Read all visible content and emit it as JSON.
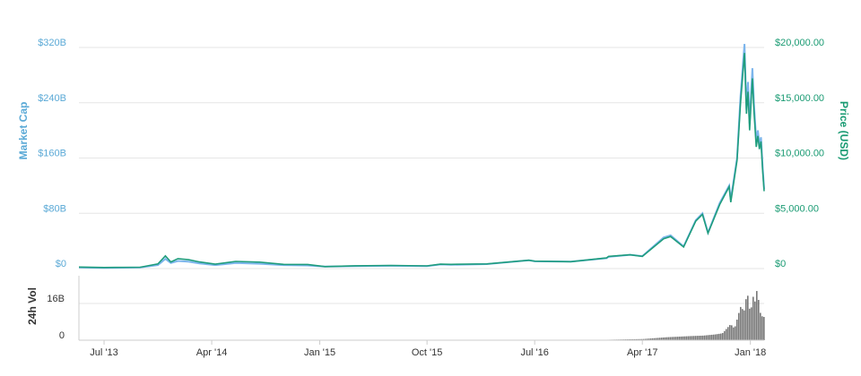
{
  "chart_data": {
    "type": "line",
    "left_axis_title": "Market Cap",
    "right_axis_title": "Price (USD)",
    "volume_axis_title": "24h Vol",
    "left_ticks": [
      {
        "value": 0,
        "label": "$0"
      },
      {
        "value": 80,
        "label": "$80B"
      },
      {
        "value": 160,
        "label": "$160B"
      },
      {
        "value": 240,
        "label": "$240B"
      },
      {
        "value": 320,
        "label": "$320B"
      }
    ],
    "right_ticks": [
      {
        "value": 0,
        "label": "$0"
      },
      {
        "value": 5000,
        "label": "$5,000.00"
      },
      {
        "value": 10000,
        "label": "$10,000.00"
      },
      {
        "value": 15000,
        "label": "$15,000.00"
      },
      {
        "value": 20000,
        "label": "$20,000.00"
      }
    ],
    "volume_ticks": [
      {
        "value": 0,
        "label": "0"
      },
      {
        "value": 16,
        "label": "16B"
      }
    ],
    "x_ticks": [
      {
        "date": "2013-07-01",
        "label": "Jul '13"
      },
      {
        "date": "2014-04-01",
        "label": "Apr '14"
      },
      {
        "date": "2015-01-01",
        "label": "Jan '15"
      },
      {
        "date": "2015-10-01",
        "label": "Oct '15"
      },
      {
        "date": "2016-07-01",
        "label": "Jul '16"
      },
      {
        "date": "2017-04-01",
        "label": "Apr '17"
      },
      {
        "date": "2018-01-01",
        "label": "Jan '18"
      }
    ],
    "x_range": [
      "2013-04-28",
      "2018-02-05"
    ],
    "left_range": [
      0,
      320
    ],
    "right_range": [
      0,
      20000
    ],
    "volume_range": [
      0,
      25
    ],
    "grid": true,
    "colors": {
      "market_cap": "#7cb5ec",
      "price": "#1f9d7d",
      "volume": "#777777",
      "left_axis": "#5aa9d6",
      "right_axis": "#1a9b73",
      "axis_text": "#333333",
      "grid": "#e6e6e6"
    },
    "series": [
      {
        "key": "market_cap",
        "unit": "B USD",
        "points": [
          [
            "2013-04-28",
            1.5
          ],
          [
            "2013-07-01",
            1.1
          ],
          [
            "2013-10-01",
            1.6
          ],
          [
            "2013-11-15",
            5.0
          ],
          [
            "2013-12-04",
            14.0
          ],
          [
            "2013-12-18",
            8.0
          ],
          [
            "2014-01-05",
            11.0
          ],
          [
            "2014-02-01",
            10.0
          ],
          [
            "2014-03-01",
            7.5
          ],
          [
            "2014-04-10",
            5.0
          ],
          [
            "2014-06-01",
            8.0
          ],
          [
            "2014-08-01",
            7.0
          ],
          [
            "2014-10-01",
            5.0
          ],
          [
            "2014-12-01",
            4.5
          ],
          [
            "2015-01-14",
            2.8
          ],
          [
            "2015-04-01",
            3.5
          ],
          [
            "2015-07-01",
            4.0
          ],
          [
            "2015-10-01",
            3.5
          ],
          [
            "2015-11-04",
            6.0
          ],
          [
            "2015-12-01",
            5.5
          ],
          [
            "2016-03-01",
            6.5
          ],
          [
            "2016-06-16",
            12.0
          ],
          [
            "2016-07-01",
            10.5
          ],
          [
            "2016-10-01",
            10.0
          ],
          [
            "2016-12-31",
            15.0
          ],
          [
            "2017-01-05",
            17.0
          ],
          [
            "2017-03-01",
            20.0
          ],
          [
            "2017-04-01",
            18.0
          ],
          [
            "2017-05-25",
            45.0
          ],
          [
            "2017-06-12",
            48.0
          ],
          [
            "2017-07-15",
            32.0
          ],
          [
            "2017-08-15",
            70.0
          ],
          [
            "2017-09-01",
            80.0
          ],
          [
            "2017-09-15",
            52.0
          ],
          [
            "2017-10-15",
            95.0
          ],
          [
            "2017-11-08",
            120.0
          ],
          [
            "2017-11-12",
            100.0
          ],
          [
            "2017-11-28",
            160.0
          ],
          [
            "2017-12-07",
            250.0
          ],
          [
            "2017-12-17",
            325.0
          ],
          [
            "2017-12-22",
            230.0
          ],
          [
            "2017-12-26",
            270.0
          ],
          [
            "2017-12-30",
            210.0
          ],
          [
            "2018-01-06",
            290.0
          ],
          [
            "2018-01-10",
            240.0
          ],
          [
            "2018-01-16",
            185.0
          ],
          [
            "2018-01-20",
            200.0
          ],
          [
            "2018-01-24",
            180.0
          ],
          [
            "2018-01-28",
            190.0
          ],
          [
            "2018-02-01",
            150.0
          ],
          [
            "2018-02-05",
            115.0
          ]
        ]
      },
      {
        "key": "price",
        "unit": "USD",
        "points": [
          [
            "2013-04-28",
            135
          ],
          [
            "2013-07-01",
            95
          ],
          [
            "2013-10-01",
            125
          ],
          [
            "2013-11-15",
            420
          ],
          [
            "2013-12-04",
            1150
          ],
          [
            "2013-12-18",
            600
          ],
          [
            "2014-01-05",
            900
          ],
          [
            "2014-02-01",
            800
          ],
          [
            "2014-03-01",
            600
          ],
          [
            "2014-04-10",
            400
          ],
          [
            "2014-06-01",
            650
          ],
          [
            "2014-08-01",
            580
          ],
          [
            "2014-10-01",
            380
          ],
          [
            "2014-12-01",
            370
          ],
          [
            "2015-01-14",
            180
          ],
          [
            "2015-04-01",
            250
          ],
          [
            "2015-07-01",
            280
          ],
          [
            "2015-10-01",
            240
          ],
          [
            "2015-11-04",
            400
          ],
          [
            "2015-12-01",
            380
          ],
          [
            "2016-03-01",
            420
          ],
          [
            "2016-06-16",
            750
          ],
          [
            "2016-07-01",
            670
          ],
          [
            "2016-10-01",
            620
          ],
          [
            "2016-12-31",
            960
          ],
          [
            "2017-01-05",
            1100
          ],
          [
            "2017-03-01",
            1250
          ],
          [
            "2017-04-01",
            1100
          ],
          [
            "2017-05-25",
            2700
          ],
          [
            "2017-06-12",
            2900
          ],
          [
            "2017-07-15",
            1950
          ],
          [
            "2017-08-15",
            4300
          ],
          [
            "2017-09-01",
            4900
          ],
          [
            "2017-09-15",
            3200
          ],
          [
            "2017-10-15",
            5800
          ],
          [
            "2017-11-08",
            7400
          ],
          [
            "2017-11-12",
            6000
          ],
          [
            "2017-11-28",
            9800
          ],
          [
            "2017-12-07",
            15000
          ],
          [
            "2017-12-17",
            19500
          ],
          [
            "2017-12-22",
            14000
          ],
          [
            "2017-12-26",
            16000
          ],
          [
            "2017-12-30",
            12500
          ],
          [
            "2018-01-06",
            17200
          ],
          [
            "2018-01-10",
            14300
          ],
          [
            "2018-01-16",
            11000
          ],
          [
            "2018-01-20",
            12000
          ],
          [
            "2018-01-24",
            10800
          ],
          [
            "2018-01-28",
            11500
          ],
          [
            "2018-02-01",
            9000
          ],
          [
            "2018-02-05",
            7000
          ]
        ]
      },
      {
        "key": "volume",
        "unit": "B USD",
        "points": [
          [
            "2013-04-28",
            0.0
          ],
          [
            "2016-12-01",
            0.1
          ],
          [
            "2017-02-01",
            0.3
          ],
          [
            "2017-04-01",
            0.5
          ],
          [
            "2017-06-01",
            1.3
          ],
          [
            "2017-08-01",
            1.8
          ],
          [
            "2017-09-01",
            2.0
          ],
          [
            "2017-10-01",
            2.5
          ],
          [
            "2017-10-20",
            3.0
          ],
          [
            "2017-11-10",
            7.0
          ],
          [
            "2017-11-20",
            5.0
          ],
          [
            "2017-12-01",
            12.0
          ],
          [
            "2017-12-08",
            16.0
          ],
          [
            "2017-12-12",
            11.0
          ],
          [
            "2017-12-17",
            15.0
          ],
          [
            "2017-12-22",
            22.0
          ],
          [
            "2017-12-27",
            14.0
          ],
          [
            "2018-01-01",
            13.0
          ],
          [
            "2018-01-05",
            20.0
          ],
          [
            "2018-01-10",
            16.0
          ],
          [
            "2018-01-17",
            23.0
          ],
          [
            "2018-01-22",
            14.0
          ],
          [
            "2018-01-27",
            10.0
          ],
          [
            "2018-02-01",
            11.0
          ],
          [
            "2018-02-05",
            9.0
          ]
        ]
      }
    ]
  }
}
